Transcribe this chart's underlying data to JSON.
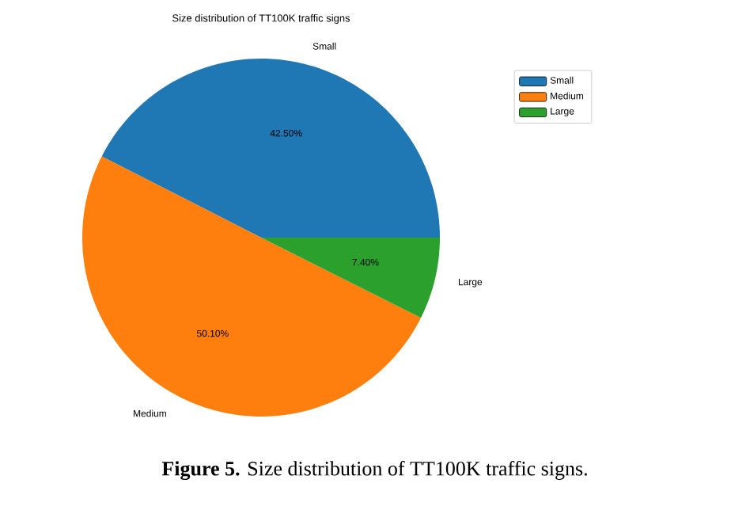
{
  "chart_data": {
    "type": "pie",
    "title": "Size distribution of TT100K traffic signs",
    "categories": [
      "Small",
      "Medium",
      "Large"
    ],
    "values": [
      42.5,
      50.1,
      7.4
    ],
    "value_labels": [
      "42.50%",
      "50.10%",
      "7.40%"
    ],
    "colors": [
      "#1f77b4",
      "#ff7f0e",
      "#2ca02c"
    ],
    "legend": "top right",
    "annotations": [
      "**Figure 5.** Size distribution of TT100K traffic signs."
    ]
  }
}
